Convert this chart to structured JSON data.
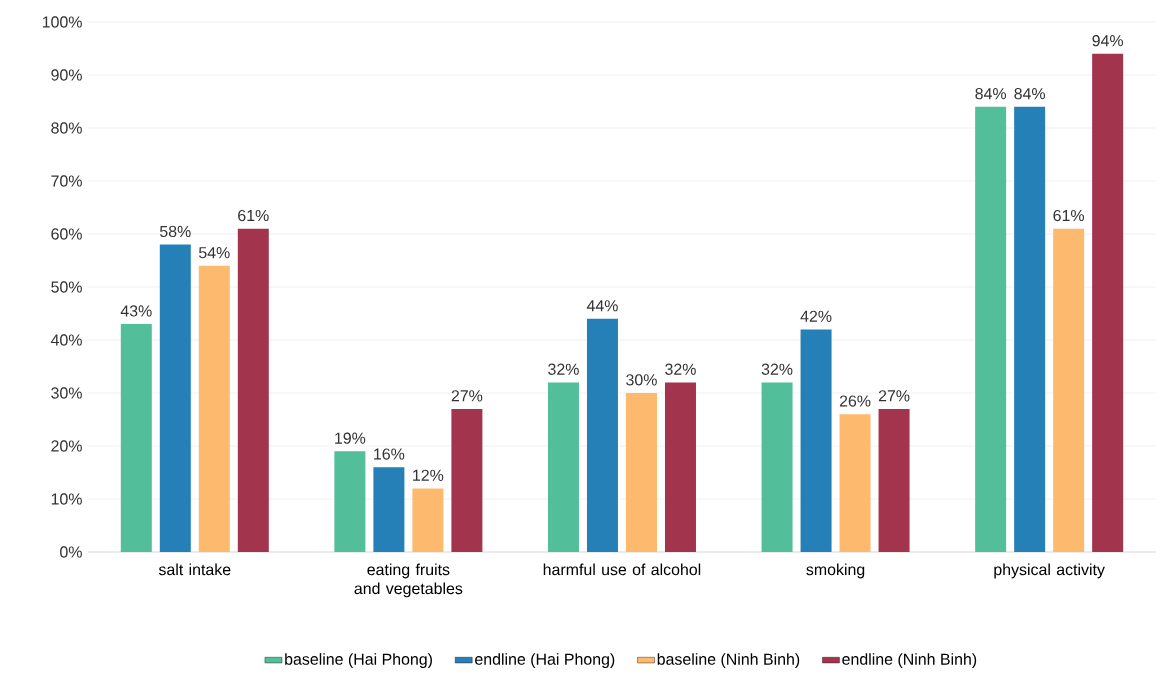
{
  "chart_data": {
    "type": "bar",
    "categories": [
      "salt intake",
      "eating fruits and vegetables",
      "harmful use of alcohol",
      "smoking",
      "physical activity"
    ],
    "series": [
      {
        "name": "baseline (Hai Phong)",
        "color": "#52bf9a",
        "values": [
          43,
          19,
          32,
          32,
          84
        ],
        "value_labels": [
          "43%",
          "19%",
          "32%",
          "32%",
          "84%"
        ]
      },
      {
        "name": "endline (Hai Phong)",
        "color": "#2580b8",
        "values": [
          58,
          16,
          44,
          42,
          84
        ],
        "value_labels": [
          "58%",
          "16%",
          "44%",
          "42%",
          "84%"
        ]
      },
      {
        "name": "baseline (Ninh Binh)",
        "color": "#fdba6e",
        "values": [
          54,
          12,
          30,
          26,
          61
        ],
        "value_labels": [
          "54%",
          "12%",
          "30%",
          "26%",
          "61%"
        ]
      },
      {
        "name": "endline (Ninh Binh)",
        "color": "#a3344d",
        "values": [
          61,
          27,
          32,
          27,
          94
        ],
        "value_labels": [
          "61%",
          "27%",
          "32%",
          "27%",
          "94%"
        ]
      }
    ],
    "ylim": [
      0,
      100
    ],
    "yticks": [
      {
        "value": 0,
        "label": "0%"
      },
      {
        "value": 10,
        "label": "10%"
      },
      {
        "value": 20,
        "label": "20%"
      },
      {
        "value": 30,
        "label": "30%"
      },
      {
        "value": 40,
        "label": "40%"
      },
      {
        "value": 50,
        "label": "50%"
      },
      {
        "value": 60,
        "label": "60%"
      },
      {
        "value": 70,
        "label": "70%"
      },
      {
        "value": 80,
        "label": "80%"
      },
      {
        "value": 90,
        "label": "90%"
      },
      {
        "value": 100,
        "label": "100%"
      }
    ],
    "grid": "y",
    "legend": "bottom"
  }
}
